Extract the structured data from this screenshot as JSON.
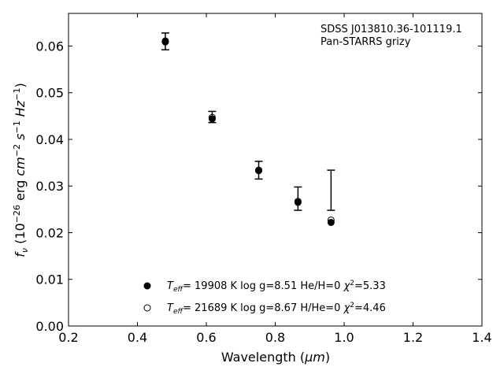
{
  "chart_data": {
    "type": "scatter",
    "xlabel_text": "Wavelength (",
    "xlabel_unit": "μm",
    "xlabel_close": ")",
    "ylabel_f": "f",
    "ylabel_sub": "ν",
    "ylabel_pre": " (10",
    "ylabel_exp1": "−26",
    "ylabel_erg": " erg ",
    "ylabel_cm": "cm",
    "ylabel_exp2": "−2",
    "ylabel_s": " s",
    "ylabel_exp3": "−1",
    "ylabel_hz": " Hz",
    "ylabel_exp4": "−1",
    "ylabel_close": ")",
    "xlim": [
      0.2,
      1.4
    ],
    "ylim": [
      0.0,
      0.067
    ],
    "xticks": [
      0.2,
      0.4,
      0.6,
      0.8,
      1.0,
      1.2,
      1.4
    ],
    "xtick_labels": [
      "0.2",
      "0.4",
      "0.6",
      "0.8",
      "1.0",
      "1.2",
      "1.4"
    ],
    "yticks": [
      0.0,
      0.01,
      0.02,
      0.03,
      0.04,
      0.05,
      0.06
    ],
    "ytick_labels": [
      "0.00",
      "0.01",
      "0.02",
      "0.03",
      "0.04",
      "0.05",
      "0.06"
    ],
    "annotation": [
      "SDSS J013810.36-101119.1",
      "Pan-STARRS grizy"
    ],
    "observed": {
      "x": [
        0.481,
        0.617,
        0.752,
        0.866,
        0.962
      ],
      "y": [
        0.061,
        0.0448,
        0.0334,
        0.0273,
        0.0291
      ],
      "err": [
        0.0018,
        0.0012,
        0.0019,
        0.0025,
        0.0043
      ]
    },
    "series": [
      {
        "marker": "filled",
        "x": [
          0.481,
          0.617,
          0.752,
          0.866,
          0.962
        ],
        "y": [
          0.0609,
          0.0444,
          0.0333,
          0.0265,
          0.0222
        ],
        "legend_teff_T": "T",
        "legend_teff_sub": "eff",
        "legend_rest": "= 19908 K  log g=8.51  He/H=0  ",
        "legend_chi": "χ",
        "legend_chi_sup": "2",
        "legend_chi_val": "=5.33"
      },
      {
        "marker": "open",
        "x": [
          0.481,
          0.617,
          0.752,
          0.866,
          0.962
        ],
        "y": [
          0.0611,
          0.0447,
          0.0334,
          0.0267,
          0.0227
        ],
        "legend_teff_T": "T",
        "legend_teff_sub": "eff",
        "legend_rest": "= 21689 K  log g=8.67  H/He=0  ",
        "legend_chi": "χ",
        "legend_chi_sup": "2",
        "legend_chi_val": "=4.46"
      }
    ]
  }
}
